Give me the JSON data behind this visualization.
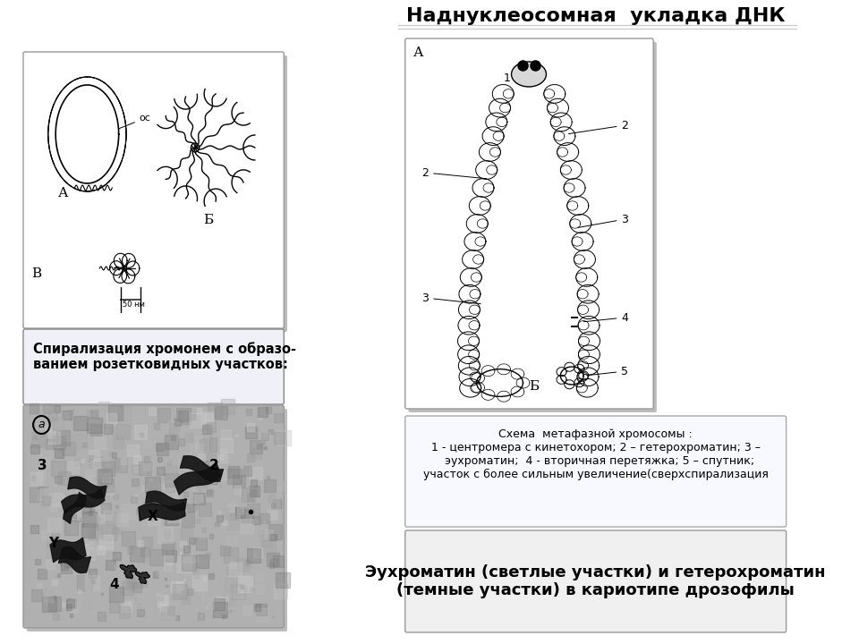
{
  "title_right": "Наднуклеосомная  укладка ДНК",
  "caption_left_top": "Спирализация хромонем с образо-\nванием розетковидных участков:",
  "caption_right_bottom": "Схема  метафазной хромосомы :\n1 - центромера с кинетохором; 2 – гетерохроматин; 3 –\n  эухроматин;  4 - вторичная перетяжка; 5 – спутник;\nучасток с более сильным увеличение(сверхспирализация",
  "caption_bottom": "Эухроматин (светлые участки) и гетерохроматин\n(темные участки) в кариотипе дрозофилы",
  "bg_color": "#ffffff",
  "shadow_color": "#bbbbbb"
}
